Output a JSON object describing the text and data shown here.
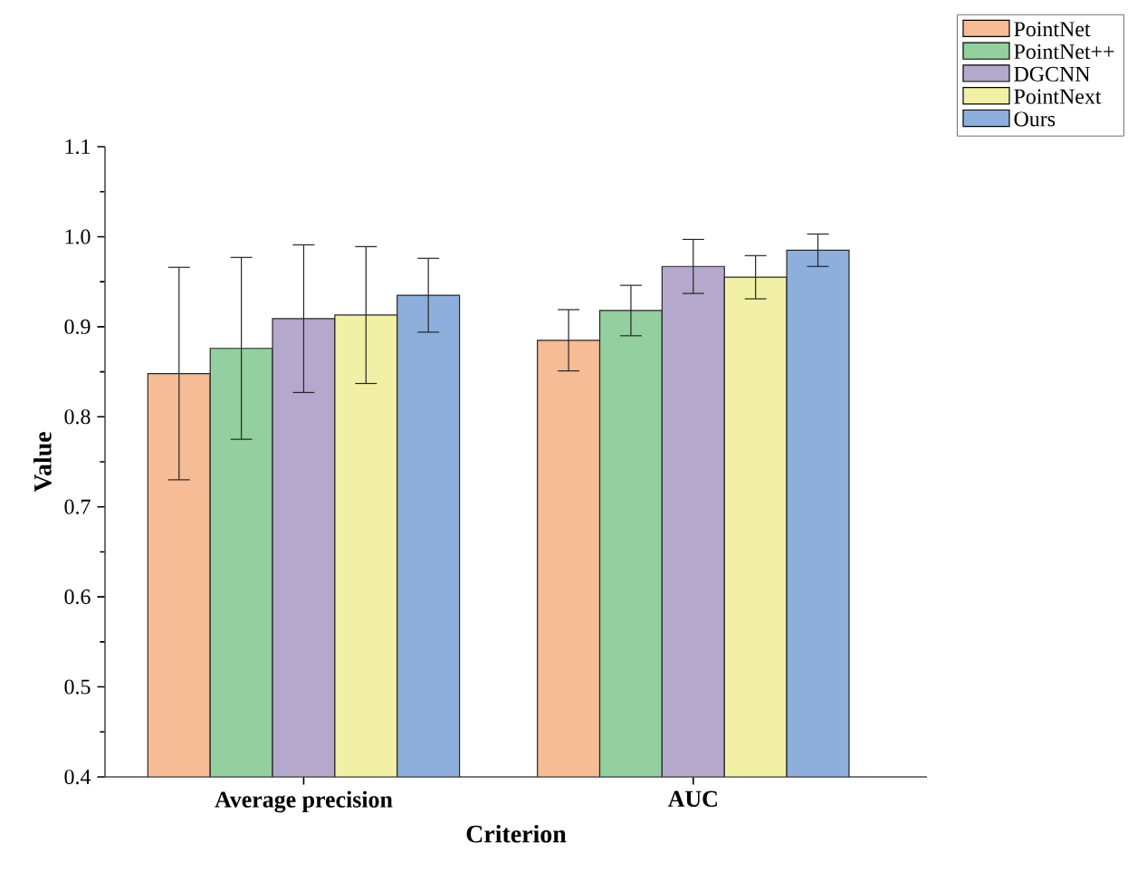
{
  "chart_data": {
    "type": "bar",
    "xlabel": "Criterion",
    "ylabel": "Value",
    "categories": [
      "Average precision",
      "AUC"
    ],
    "series": [
      {
        "name": "PointNet",
        "color": "#f5bc96",
        "values": [
          0.848,
          0.885
        ],
        "errors": [
          0.118,
          0.034
        ]
      },
      {
        "name": "PointNet++",
        "color": "#93cf9f",
        "values": [
          0.876,
          0.918
        ],
        "errors": [
          0.101,
          0.028
        ]
      },
      {
        "name": "DGCNN",
        "color": "#b4a8cc",
        "values": [
          0.909,
          0.967
        ],
        "errors": [
          0.082,
          0.03
        ]
      },
      {
        "name": "PointNext",
        "color": "#f2f0a4",
        "values": [
          0.913,
          0.955
        ],
        "errors": [
          0.076,
          0.024
        ]
      },
      {
        "name": "Ours",
        "color": "#8eaedb",
        "values": [
          0.935,
          0.985
        ],
        "errors": [
          0.041,
          0.018
        ]
      }
    ],
    "ylim": [
      0.4,
      1.1
    ],
    "yticks": [
      0.4,
      0.5,
      0.6,
      0.7,
      0.8,
      0.9,
      {
        "value": 1.0,
        "label": "1.0"
      },
      1.1
    ],
    "grid": false,
    "legend": "top right"
  }
}
